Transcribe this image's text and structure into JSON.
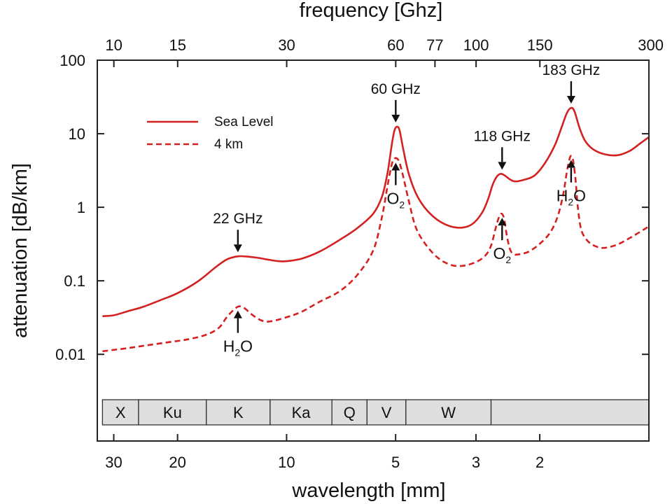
{
  "chart_data": {
    "type": "line",
    "title": "",
    "xlabel_top": "frequency [Ghz]",
    "xlabel_bottom": "wavelength [mm]",
    "ylabel": "attenuation [dB/km]",
    "x_scale": "log",
    "y_scale": "log",
    "xlim_ghz": [
      9,
      300
    ],
    "ylim": [
      0.004,
      100
    ],
    "grid": false,
    "legend_position": "upper-left",
    "top_ticks": [
      {
        "value": 10,
        "label": "10"
      },
      {
        "value": 15,
        "label": "15"
      },
      {
        "value": 30,
        "label": "30"
      },
      {
        "value": 60,
        "label": "60"
      },
      {
        "value": 77,
        "label": "77"
      },
      {
        "value": 100,
        "label": "100"
      },
      {
        "value": 150,
        "label": "150"
      },
      {
        "value": 300,
        "label": "300"
      }
    ],
    "bottom_ticks": [
      {
        "value": 30,
        "label": "30"
      },
      {
        "value": 20,
        "label": "20"
      },
      {
        "value": 10,
        "label": "10"
      },
      {
        "value": 5,
        "label": "5"
      },
      {
        "value": 3,
        "label": "3"
      },
      {
        "value": 2,
        "label": "2"
      }
    ],
    "y_ticks": [
      {
        "value": 100,
        "label": "100"
      },
      {
        "value": 10,
        "label": "10"
      },
      {
        "value": 1,
        "label": "1"
      },
      {
        "value": 0.1,
        "label": "0.1"
      },
      {
        "value": 0.01,
        "label": "0.01"
      }
    ],
    "series": [
      {
        "name": "Sea Level",
        "style": "solid",
        "color": "#d42020",
        "points": [
          [
            9.3,
            0.033
          ],
          [
            10,
            0.034
          ],
          [
            11,
            0.039
          ],
          [
            12,
            0.044
          ],
          [
            13.5,
            0.055
          ],
          [
            15,
            0.068
          ],
          [
            17,
            0.097
          ],
          [
            19,
            0.15
          ],
          [
            20.5,
            0.195
          ],
          [
            22,
            0.215
          ],
          [
            23.5,
            0.213
          ],
          [
            25,
            0.205
          ],
          [
            27,
            0.192
          ],
          [
            28.5,
            0.185
          ],
          [
            30,
            0.185
          ],
          [
            33,
            0.2
          ],
          [
            37,
            0.25
          ],
          [
            42,
            0.36
          ],
          [
            47,
            0.52
          ],
          [
            52,
            0.82
          ],
          [
            55,
            1.4
          ],
          [
            57,
            3.0
          ],
          [
            58.5,
            7.0
          ],
          [
            59.5,
            11.0
          ],
          [
            60.5,
            12.5
          ],
          [
            61.5,
            11.0
          ],
          [
            63,
            6.0
          ],
          [
            65,
            3.0
          ],
          [
            68,
            1.6
          ],
          [
            72,
            1.0
          ],
          [
            78,
            0.68
          ],
          [
            85,
            0.55
          ],
          [
            92,
            0.53
          ],
          [
            98,
            0.6
          ],
          [
            104,
            0.85
          ],
          [
            108,
            1.3
          ],
          [
            111,
            2.0
          ],
          [
            114,
            2.6
          ],
          [
            117,
            2.85
          ],
          [
            120,
            2.7
          ],
          [
            124,
            2.4
          ],
          [
            128,
            2.25
          ],
          [
            135,
            2.35
          ],
          [
            145,
            2.7
          ],
          [
            155,
            4.0
          ],
          [
            165,
            7.0
          ],
          [
            172,
            12.0
          ],
          [
            178,
            19.0
          ],
          [
            183,
            22.5
          ],
          [
            187,
            20.0
          ],
          [
            193,
            12.0
          ],
          [
            200,
            8.0
          ],
          [
            210,
            6.2
          ],
          [
            225,
            5.3
          ],
          [
            245,
            5.1
          ],
          [
            265,
            5.8
          ],
          [
            285,
            7.5
          ],
          [
            300,
            9.0
          ]
        ]
      },
      {
        "name": "4 km",
        "style": "dashed",
        "color": "#d42020",
        "points": [
          [
            9.3,
            0.011
          ],
          [
            10,
            0.0115
          ],
          [
            11,
            0.0122
          ],
          [
            12,
            0.013
          ],
          [
            14,
            0.0145
          ],
          [
            16,
            0.016
          ],
          [
            18,
            0.0185
          ],
          [
            19.5,
            0.023
          ],
          [
            20.5,
            0.032
          ],
          [
            21.5,
            0.041
          ],
          [
            22.2,
            0.045
          ],
          [
            23,
            0.042
          ],
          [
            24,
            0.035
          ],
          [
            25.5,
            0.029
          ],
          [
            27,
            0.028
          ],
          [
            30,
            0.032
          ],
          [
            33,
            0.038
          ],
          [
            37,
            0.052
          ],
          [
            42,
            0.072
          ],
          [
            47,
            0.12
          ],
          [
            52,
            0.26
          ],
          [
            55,
            0.75
          ],
          [
            57,
            2.0
          ],
          [
            58.5,
            3.8
          ],
          [
            59.5,
            4.6
          ],
          [
            61,
            4.4
          ],
          [
            62.5,
            3.0
          ],
          [
            65,
            1.3
          ],
          [
            68,
            0.55
          ],
          [
            72,
            0.33
          ],
          [
            78,
            0.21
          ],
          [
            85,
            0.165
          ],
          [
            92,
            0.16
          ],
          [
            100,
            0.18
          ],
          [
            106,
            0.22
          ],
          [
            110,
            0.3
          ],
          [
            113,
            0.5
          ],
          [
            115.5,
            0.72
          ],
          [
            117.5,
            0.82
          ],
          [
            119.5,
            0.7
          ],
          [
            121.5,
            0.42
          ],
          [
            124,
            0.27
          ],
          [
            127,
            0.23
          ],
          [
            132,
            0.23
          ],
          [
            140,
            0.25
          ],
          [
            150,
            0.32
          ],
          [
            160,
            0.45
          ],
          [
            168,
            0.75
          ],
          [
            174,
            1.5
          ],
          [
            178,
            3.0
          ],
          [
            181,
            4.5
          ],
          [
            183,
            5.0
          ],
          [
            185,
            4.5
          ],
          [
            188,
            2.5
          ],
          [
            191,
            1.0
          ],
          [
            195,
            0.5
          ],
          [
            202,
            0.36
          ],
          [
            212,
            0.3
          ],
          [
            225,
            0.28
          ],
          [
            245,
            0.31
          ],
          [
            270,
            0.4
          ],
          [
            300,
            0.55
          ]
        ]
      }
    ],
    "annotations": [
      {
        "label": "22 GHz",
        "x": 22,
        "position": "above-arrow-down",
        "target_y": 0.215
      },
      {
        "label": "60 GHz",
        "x": 60,
        "position": "above-arrow-down",
        "target_y": 12.5
      },
      {
        "label": "118 GHz",
        "x": 118,
        "position": "above-arrow-down",
        "target_y": 2.85
      },
      {
        "label": "183 GHz",
        "x": 183,
        "position": "above-arrow-down",
        "target_y": 22.5
      }
    ],
    "molecule_labels": [
      {
        "base": "H",
        "sub": "2",
        "suffix": "O",
        "x": 22,
        "target_y": 0.045
      },
      {
        "base": "O",
        "sub": "2",
        "suffix": "",
        "x": 60,
        "target_y": 4.6
      },
      {
        "base": "O",
        "sub": "2",
        "suffix": "",
        "x": 118,
        "target_y": 0.82
      },
      {
        "base": "H",
        "sub": "2",
        "suffix": "O",
        "x": 183,
        "target_y": 5.0
      }
    ],
    "bands": [
      {
        "label": "X",
        "from": 9.3,
        "to": 11.7
      },
      {
        "label": "Ku",
        "from": 11.7,
        "to": 18
      },
      {
        "label": "K",
        "from": 18,
        "to": 27
      },
      {
        "label": "Ka",
        "from": 27,
        "to": 40
      },
      {
        "label": "Q",
        "from": 40,
        "to": 50
      },
      {
        "label": "V",
        "from": 50,
        "to": 64
      },
      {
        "label": "W",
        "from": 64,
        "to": 110
      },
      {
        "label": "",
        "from": 110,
        "to": 300
      }
    ]
  }
}
